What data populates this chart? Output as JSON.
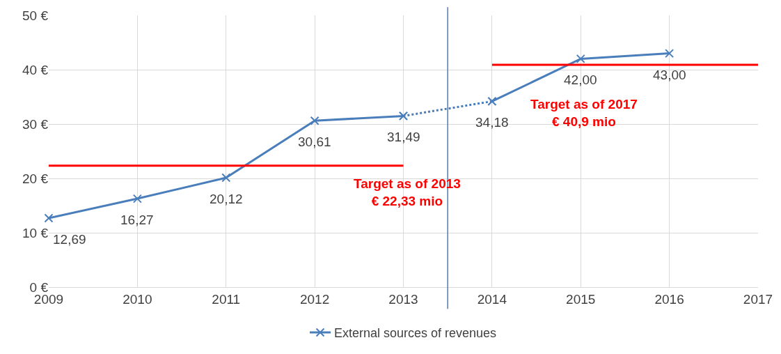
{
  "chart_data": {
    "type": "line",
    "xlim": [
      2009,
      2017
    ],
    "xticks": [
      2009,
      2010,
      2011,
      2012,
      2013,
      2014,
      2015,
      2016,
      2017
    ],
    "ylim": [
      0,
      50
    ],
    "yticks": [
      {
        "value": 0,
        "label": "0 €"
      },
      {
        "value": 10,
        "label": "10 €"
      },
      {
        "value": 20,
        "label": "20 €"
      },
      {
        "value": 30,
        "label": "30 €"
      },
      {
        "value": 40,
        "label": "40 €"
      },
      {
        "value": 50,
        "label": "50 €"
      }
    ],
    "grid": true,
    "legend": "bottom",
    "marker": "cross",
    "series": [
      {
        "name": "External sources of revenues",
        "color": "#4a7ebb",
        "x": [
          2009,
          2010,
          2011,
          2012,
          2013
        ],
        "values": [
          12.69,
          16.27,
          20.12,
          30.61,
          31.49
        ],
        "value_labels": [
          "12,69",
          "16,27",
          "20,12",
          "30,61",
          "31,49"
        ],
        "line_style": "solid"
      },
      {
        "color": "#4a7ebb",
        "x": [
          2013,
          2014
        ],
        "values": [
          31.49,
          34.18
        ],
        "value_labels": [
          null,
          "34,18"
        ],
        "line_style": "dotted"
      },
      {
        "color": "#4a7ebb",
        "x": [
          2014,
          2015,
          2016
        ],
        "values": [
          34.18,
          42.0,
          43.0
        ],
        "value_labels": [
          null,
          "42,00",
          "43,00"
        ],
        "line_style": "solid"
      },
      {
        "color": "#ff0000",
        "x": [
          2009,
          2013
        ],
        "values": [
          22.33,
          22.33
        ],
        "marker": "none",
        "line_style": "solid"
      },
      {
        "color": "#ff0000",
        "x": [
          2014,
          2017
        ],
        "values": [
          40.9,
          40.9
        ],
        "marker": "none",
        "line_style": "solid"
      }
    ],
    "ref_lines": [
      {
        "axis": "x",
        "value": 2013.5,
        "color": "#4a7ebb",
        "line_style": "solid"
      }
    ],
    "annotations": [
      "Target as of 2013\n€ 22,33 mio",
      "Target as of 2017\n€ 40,9 mio"
    ]
  }
}
